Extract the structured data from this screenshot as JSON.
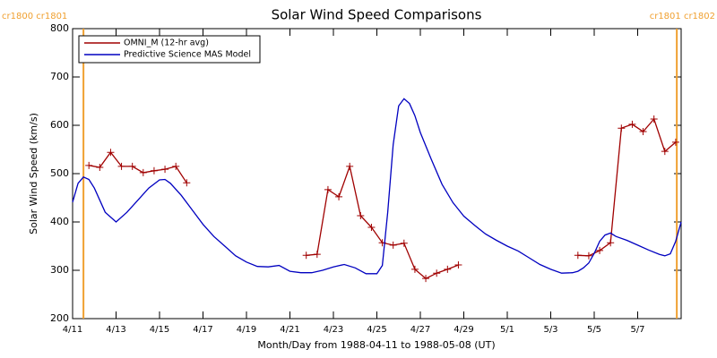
{
  "chart_data": {
    "type": "line",
    "title": "Solar Wind Speed Comparisons",
    "xlabel": "Month/Day from 1988-04-11 to 1988-05-08 (UT)",
    "ylabel": "Solar Wind Speed (km/s)",
    "xlim": [
      0,
      28
    ],
    "ylim": [
      200,
      800
    ],
    "xticks": [
      {
        "value": 0,
        "label": "4/11"
      },
      {
        "value": 2,
        "label": "4/13"
      },
      {
        "value": 4,
        "label": "4/15"
      },
      {
        "value": 6,
        "label": "4/17"
      },
      {
        "value": 8,
        "label": "4/19"
      },
      {
        "value": 10,
        "label": "4/21"
      },
      {
        "value": 12,
        "label": "4/23"
      },
      {
        "value": 14,
        "label": "4/25"
      },
      {
        "value": 16,
        "label": "4/27"
      },
      {
        "value": 18,
        "label": "4/29"
      },
      {
        "value": 20,
        "label": "5/1"
      },
      {
        "value": 22,
        "label": "5/3"
      },
      {
        "value": 24,
        "label": "5/5"
      },
      {
        "value": 26,
        "label": "5/7"
      }
    ],
    "yticks": [
      200,
      300,
      400,
      500,
      600,
      700,
      800
    ],
    "legend": "upper left",
    "annotations": [
      {
        "text": "cr1800 cr1801",
        "x": 0.5,
        "color": "#f0a030"
      },
      {
        "text": "cr1801 cr1802",
        "x": 27.8,
        "color": "#f0a030"
      }
    ],
    "series": [
      {
        "name": "OMNI_M (12-hr avg)",
        "color": "#a00000",
        "marker": "+",
        "x": [
          0.75,
          1.25,
          1.75,
          2.25,
          2.75,
          3.25,
          3.75,
          4.25,
          4.75,
          5.25,
          null,
          10.75,
          11.25,
          11.75,
          12.25,
          12.75,
          13.25,
          13.75,
          14.25,
          14.75,
          15.25,
          15.75,
          16.25,
          16.75,
          17.25,
          17.75,
          null,
          23.25,
          23.75,
          24.25,
          24.75,
          25.25,
          25.75,
          26.25,
          26.75,
          27.25,
          27.75
        ],
        "values": [
          517,
          513,
          544,
          515,
          515,
          502,
          506,
          509,
          515,
          481,
          null,
          331,
          333,
          467,
          452,
          515,
          413,
          389,
          357,
          352,
          356,
          302,
          283,
          294,
          302,
          311,
          null,
          331,
          330,
          341,
          357,
          594,
          602,
          587,
          613,
          546,
          565
        ]
      },
      {
        "name": "Predictive Science MAS Model",
        "color": "#0000c0",
        "x": [
          0,
          0.25,
          0.5,
          0.75,
          1,
          1.5,
          2,
          2.5,
          3,
          3.5,
          4,
          4.25,
          4.5,
          5,
          5.5,
          6,
          6.5,
          7,
          7.5,
          8,
          8.5,
          9,
          9.5,
          10,
          10.5,
          11,
          11.5,
          12,
          12.5,
          13,
          13.5,
          14,
          14.25,
          14.5,
          14.75,
          15,
          15.25,
          15.5,
          15.75,
          16,
          16.5,
          17,
          17.5,
          18,
          18.5,
          19,
          19.5,
          20,
          20.5,
          21,
          21.5,
          22,
          22.5,
          23,
          23.25,
          23.5,
          23.75,
          24,
          24.25,
          24.5,
          24.75,
          25,
          25.5,
          26,
          26.5,
          27,
          27.25,
          27.5,
          27.75,
          28
        ],
        "values": [
          441,
          480,
          493,
          488,
          470,
          420,
          400,
          420,
          445,
          470,
          487,
          488,
          480,
          455,
          425,
          395,
          370,
          350,
          330,
          317,
          308,
          307,
          310,
          298,
          295,
          295,
          300,
          307,
          312,
          305,
          293,
          293,
          310,
          420,
          560,
          640,
          655,
          645,
          620,
          585,
          530,
          478,
          440,
          412,
          393,
          375,
          362,
          350,
          340,
          326,
          312,
          302,
          294,
          295,
          298,
          305,
          315,
          335,
          360,
          373,
          377,
          370,
          362,
          352,
          342,
          333,
          330,
          334,
          360,
          400
        ]
      }
    ]
  }
}
